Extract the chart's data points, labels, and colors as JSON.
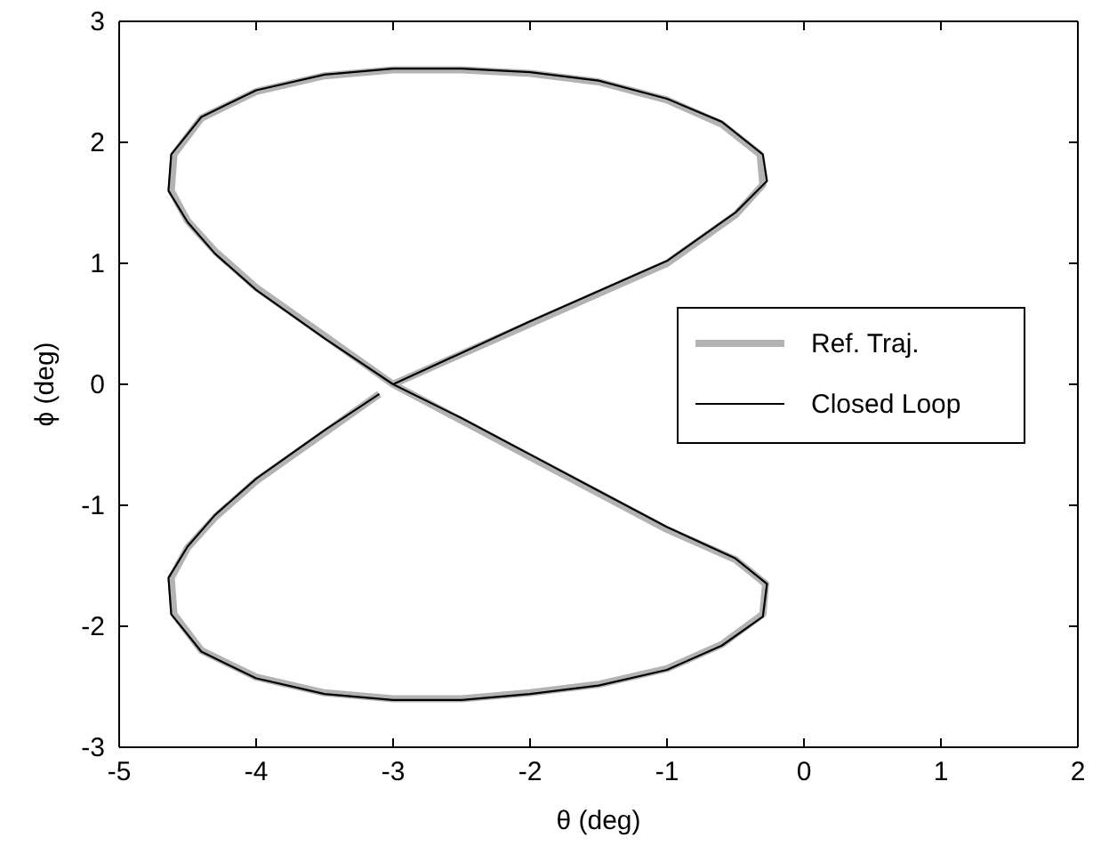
{
  "chart_data": {
    "type": "line",
    "xlabel": "θ (deg)",
    "ylabel": "ϕ (deg)",
    "xlim": [
      -5,
      2
    ],
    "ylim": [
      -3,
      3
    ],
    "xticks": [
      -5,
      -4,
      -3,
      -2,
      -1,
      0,
      1,
      2
    ],
    "yticks": [
      -3,
      -2,
      -1,
      0,
      1,
      2,
      3
    ],
    "legend": "right",
    "grid": false,
    "series": [
      {
        "name": "Ref. Traj.",
        "color": "#b3b3b3",
        "x": [
          -3,
          -2.5,
          -2,
          -1.5,
          -1,
          -0.5,
          -0.3,
          -0.32,
          -0.6,
          -1,
          -1.5,
          -2,
          -2.5,
          -3,
          -3.5,
          -4,
          -4.4,
          -4.6,
          -4.62,
          -4.5,
          -4.3,
          -4,
          -3.5,
          -3,
          -2.5,
          -2,
          -1.5,
          -1,
          -0.5,
          -0.28,
          -0.3,
          -0.6,
          -1,
          -1.5,
          -2,
          -2.5,
          -3,
          -3.5,
          -4,
          -4.4,
          -4.6,
          -4.62,
          -4.5,
          -4.3,
          -4,
          -3.5,
          -3.1
        ],
        "values": [
          0,
          0.25,
          0.5,
          0.75,
          1,
          1.4,
          1.65,
          1.9,
          2.15,
          2.35,
          2.5,
          2.57,
          2.6,
          2.6,
          2.55,
          2.42,
          2.2,
          1.9,
          1.6,
          1.35,
          1.1,
          0.8,
          0.4,
          0,
          -0.3,
          -0.6,
          -0.9,
          -1.2,
          -1.45,
          -1.65,
          -1.9,
          -2.15,
          -2.35,
          -2.48,
          -2.55,
          -2.6,
          -2.6,
          -2.55,
          -2.42,
          -2.2,
          -1.9,
          -1.6,
          -1.35,
          -1.1,
          -0.8,
          -0.4,
          -0.08
        ]
      },
      {
        "name": "Closed Loop",
        "color": "#000000",
        "x": [
          -3,
          -2.5,
          -2,
          -1.5,
          -1,
          -0.5,
          -0.27,
          -0.3,
          -0.6,
          -1,
          -1.5,
          -2,
          -2.5,
          -3,
          -3.5,
          -4,
          -4.4,
          -4.62,
          -4.64,
          -4.5,
          -4.3,
          -4,
          -3.5,
          -3,
          -2.5,
          -2,
          -1.5,
          -1,
          -0.5,
          -0.27,
          -0.3,
          -0.6,
          -1,
          -1.5,
          -2,
          -2.5,
          -3,
          -3.5,
          -4,
          -4.4,
          -4.62,
          -4.64,
          -4.5,
          -4.3,
          -4,
          -3.5,
          -3.1
        ],
        "values": [
          0,
          0.26,
          0.52,
          0.77,
          1.02,
          1.42,
          1.68,
          1.9,
          2.17,
          2.36,
          2.51,
          2.58,
          2.61,
          2.61,
          2.56,
          2.43,
          2.21,
          1.9,
          1.6,
          1.34,
          1.08,
          0.78,
          0.38,
          0,
          -0.28,
          -0.58,
          -0.88,
          -1.18,
          -1.44,
          -1.65,
          -1.92,
          -2.16,
          -2.36,
          -2.49,
          -2.56,
          -2.61,
          -2.61,
          -2.56,
          -2.43,
          -2.21,
          -1.9,
          -1.6,
          -1.34,
          -1.08,
          -0.78,
          -0.38,
          -0.08
        ]
      }
    ]
  }
}
